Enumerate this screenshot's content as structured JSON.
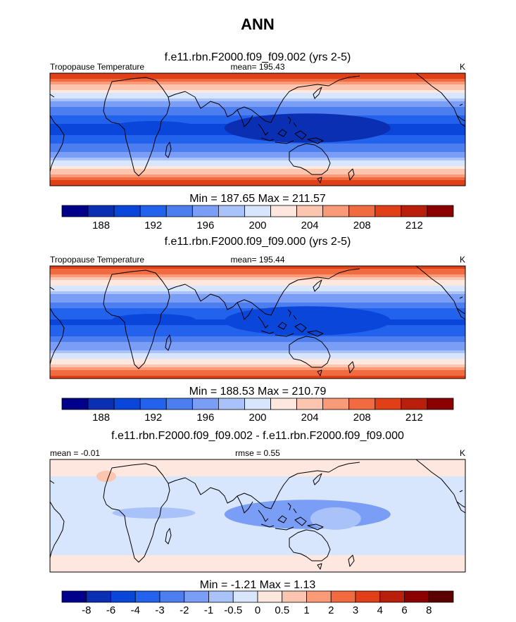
{
  "figure": {
    "title": "ANN"
  },
  "chart_data": [
    {
      "type": "heatmap",
      "title": "f.e11.rbn.F2000.f09_f09.002 (yrs 2-5)",
      "left_label": "Tropopause Temperature",
      "center_label": "mean= 195.43",
      "units": "K",
      "stats": "Min = 187.65 Max = 211.57",
      "colorbar": {
        "levels": [
          186,
          188,
          190,
          192,
          194,
          196,
          198,
          200,
          202,
          204,
          206,
          208,
          210,
          212,
          214
        ],
        "tick_labels": [
          "188",
          "192",
          "196",
          "200",
          "204",
          "208",
          "212"
        ],
        "colors": [
          "#00008b",
          "#0b2fb3",
          "#0a46d9",
          "#2362ec",
          "#4c7ef0",
          "#7a9ef5",
          "#a9c2f9",
          "#d8e6fd",
          "#fde7de",
          "#fbc5b0",
          "#f99a78",
          "#f26a3f",
          "#e13f17",
          "#b91f0b",
          "#8b0000"
        ]
      },
      "field": {
        "equator_value": 189.5,
        "pole_value": 210.5,
        "west_pacific_anomaly": -1.8
      }
    },
    {
      "type": "heatmap",
      "title": "f.e11.rbn.F2000.f09_f09.000 (yrs 2-5)",
      "left_label": "Tropopause Temperature",
      "center_label": "mean= 195.44",
      "units": "K",
      "stats": "Min = 188.53 Max = 210.79",
      "colorbar": {
        "levels": [
          186,
          188,
          190,
          192,
          194,
          196,
          198,
          200,
          202,
          204,
          206,
          208,
          210,
          212,
          214
        ],
        "tick_labels": [
          "188",
          "192",
          "196",
          "200",
          "204",
          "208",
          "212"
        ],
        "colors": [
          "#00008b",
          "#0b2fb3",
          "#0a46d9",
          "#2362ec",
          "#4c7ef0",
          "#7a9ef5",
          "#a9c2f9",
          "#d8e6fd",
          "#fde7de",
          "#fbc5b0",
          "#f99a78",
          "#f26a3f",
          "#e13f17",
          "#b91f0b",
          "#8b0000"
        ]
      },
      "field": {
        "equator_value": 189.8,
        "pole_value": 210.2,
        "west_pacific_anomaly": -1.5
      }
    },
    {
      "type": "heatmap",
      "title": "f.e11.rbn.F2000.f09_f09.002 - f.e11.rbn.F2000.f09_f09.000",
      "left_label": "mean =  -0.01",
      "center_label": "rmse =   0.55",
      "units": "K",
      "stats": "Min =  -1.21 Max =   1.13",
      "colorbar": {
        "tick_labels": [
          "-8",
          "-6",
          "-4",
          "-3",
          "-2",
          "-1",
          "-0.5",
          "0",
          "0.5",
          "1",
          "2",
          "3",
          "4",
          "6",
          "8"
        ],
        "colors": [
          "#00008b",
          "#0b2fb3",
          "#0a46d9",
          "#2362ec",
          "#4c7ef0",
          "#7a9ef5",
          "#a9c2f9",
          "#d8e6fd",
          "#fde7de",
          "#fbc5b0",
          "#f99a78",
          "#f26a3f",
          "#e13f17",
          "#b91f0b",
          "#8b0000",
          "#5a0000"
        ]
      },
      "field": {
        "equator_value": -0.35,
        "pole_value": 0.3,
        "west_pacific_anomaly": -0.8
      }
    }
  ]
}
